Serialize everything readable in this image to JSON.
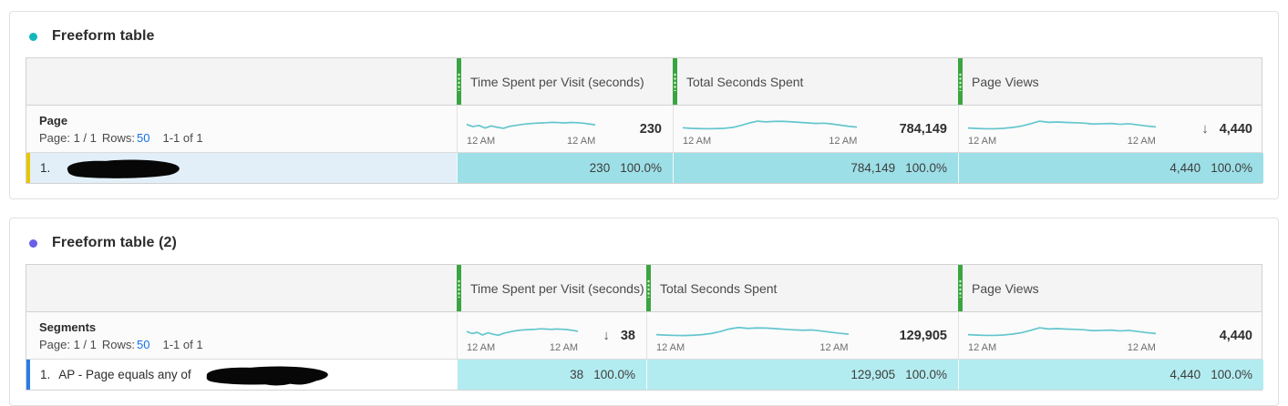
{
  "colors": {
    "accent_green": "#3aa540",
    "sparkline": "#63c6cd",
    "link_blue": "#1473e6",
    "p0_bullet": "#12b7bd",
    "p0_row_bar": "#e8c600",
    "p0_row_bg": "#e2eff9",
    "p0_cell_bg": "#9ddfe7",
    "p1_bullet": "#6a5fe8",
    "p1_row_bar": "#2a7de1",
    "p1_row_bg": "#ffffff",
    "p1_cell_bg": "#b3ecf0"
  },
  "panels": [
    {
      "title": "Freeform table",
      "row_dimension": "Page",
      "pagination": {
        "page": "Page: 1 / 1",
        "rows_label": "Rows:",
        "rows_value": "50",
        "range": "1-1 of 1"
      },
      "columns": [
        {
          "label": "Time Spent per Visit (seconds)",
          "total": "230",
          "sort": "",
          "axis_start": "12 AM",
          "axis_end": "12 AM",
          "spark": [
            0.45,
            0.6,
            0.52,
            0.7,
            0.55,
            0.65,
            0.72,
            0.58,
            0.52,
            0.45,
            0.4,
            0.37,
            0.35,
            0.33,
            0.3,
            0.32,
            0.34,
            0.31,
            0.33,
            0.36,
            0.42,
            0.48
          ]
        },
        {
          "label": "Total Seconds Spent",
          "total": "784,149",
          "sort": "",
          "axis_start": "12 AM",
          "axis_end": "12 AM",
          "spark": [
            0.68,
            0.72,
            0.74,
            0.75,
            0.74,
            0.72,
            0.66,
            0.52,
            0.35,
            0.22,
            0.27,
            0.24,
            0.23,
            0.26,
            0.3,
            0.34,
            0.38,
            0.36,
            0.42,
            0.5,
            0.58,
            0.64
          ]
        },
        {
          "label": "Page Views",
          "total": "4,440",
          "sort": "↓",
          "axis_start": "12 AM",
          "axis_end": "12 AM",
          "spark": [
            0.7,
            0.73,
            0.75,
            0.75,
            0.72,
            0.66,
            0.56,
            0.4,
            0.22,
            0.3,
            0.28,
            0.31,
            0.33,
            0.36,
            0.42,
            0.4,
            0.38,
            0.44,
            0.4,
            0.48,
            0.56,
            0.62
          ]
        }
      ],
      "rows": [
        {
          "num": "1.",
          "label": "",
          "redacted": true,
          "values": [
            {
              "value": "230",
              "pct": "100.0%"
            },
            {
              "value": "784,149",
              "pct": "100.0%"
            },
            {
              "value": "4,440",
              "pct": "100.0%"
            }
          ]
        }
      ]
    },
    {
      "title": "Freeform table (2)",
      "row_dimension": "Segments",
      "pagination": {
        "page": "Page: 1 / 1",
        "rows_label": "Rows:",
        "rows_value": "50",
        "range": "1-1 of 1"
      },
      "columns": [
        {
          "label": "Time Spent per Visit (seconds)",
          "total": "38",
          "sort": "↓",
          "axis_start": "12 AM",
          "axis_end": "12 AM",
          "spark": [
            0.48,
            0.62,
            0.54,
            0.72,
            0.57,
            0.67,
            0.74,
            0.6,
            0.52,
            0.44,
            0.39,
            0.36,
            0.34,
            0.32,
            0.29,
            0.31,
            0.33,
            0.3,
            0.32,
            0.35,
            0.4,
            0.46
          ]
        },
        {
          "label": "Total Seconds Spent",
          "total": "129,905",
          "sort": "",
          "axis_start": "12 AM",
          "axis_end": "12 AM",
          "spark": [
            0.7,
            0.73,
            0.75,
            0.76,
            0.74,
            0.7,
            0.62,
            0.48,
            0.3,
            0.2,
            0.26,
            0.23,
            0.24,
            0.28,
            0.32,
            0.36,
            0.39,
            0.37,
            0.44,
            0.52,
            0.6,
            0.66
          ]
        },
        {
          "label": "Page Views",
          "total": "4,440",
          "sort": "",
          "axis_start": "12 AM",
          "axis_end": "12 AM",
          "spark": [
            0.7,
            0.73,
            0.75,
            0.75,
            0.72,
            0.66,
            0.56,
            0.4,
            0.22,
            0.3,
            0.28,
            0.31,
            0.33,
            0.36,
            0.42,
            0.4,
            0.38,
            0.44,
            0.4,
            0.48,
            0.56,
            0.62
          ]
        }
      ],
      "rows": [
        {
          "num": "1.",
          "label": "AP - Page equals any of",
          "redacted": true,
          "values": [
            {
              "value": "38",
              "pct": "100.0%"
            },
            {
              "value": "129,905",
              "pct": "100.0%"
            },
            {
              "value": "4,440",
              "pct": "100.0%"
            }
          ]
        }
      ]
    }
  ]
}
